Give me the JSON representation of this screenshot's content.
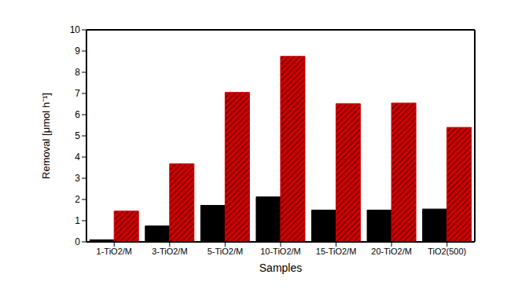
{
  "chart_data": {
    "type": "bar",
    "x_label": "Samples",
    "y_label": "Removal [μmol h⁻¹]",
    "categories": [
      "1-TiO2/M",
      "3-TiO2/M",
      "5-TiO2/M",
      "10-TiO2/M",
      "15-TiO2/M",
      "20-TiO2/M",
      "TiO2(500)"
    ],
    "series": [
      {
        "color": "#000000",
        "values": [
          0.1,
          0.75,
          1.72,
          2.12,
          1.5,
          1.5,
          1.55
        ]
      },
      {
        "color": "#cc0000",
        "values": [
          1.45,
          3.68,
          7.05,
          8.75,
          6.52,
          6.55,
          5.4
        ]
      }
    ],
    "ylim": [
      0,
      10
    ],
    "yticks": [
      0,
      1,
      2,
      3,
      4,
      5,
      6,
      7,
      8,
      9,
      10
    ],
    "grid": false
  }
}
